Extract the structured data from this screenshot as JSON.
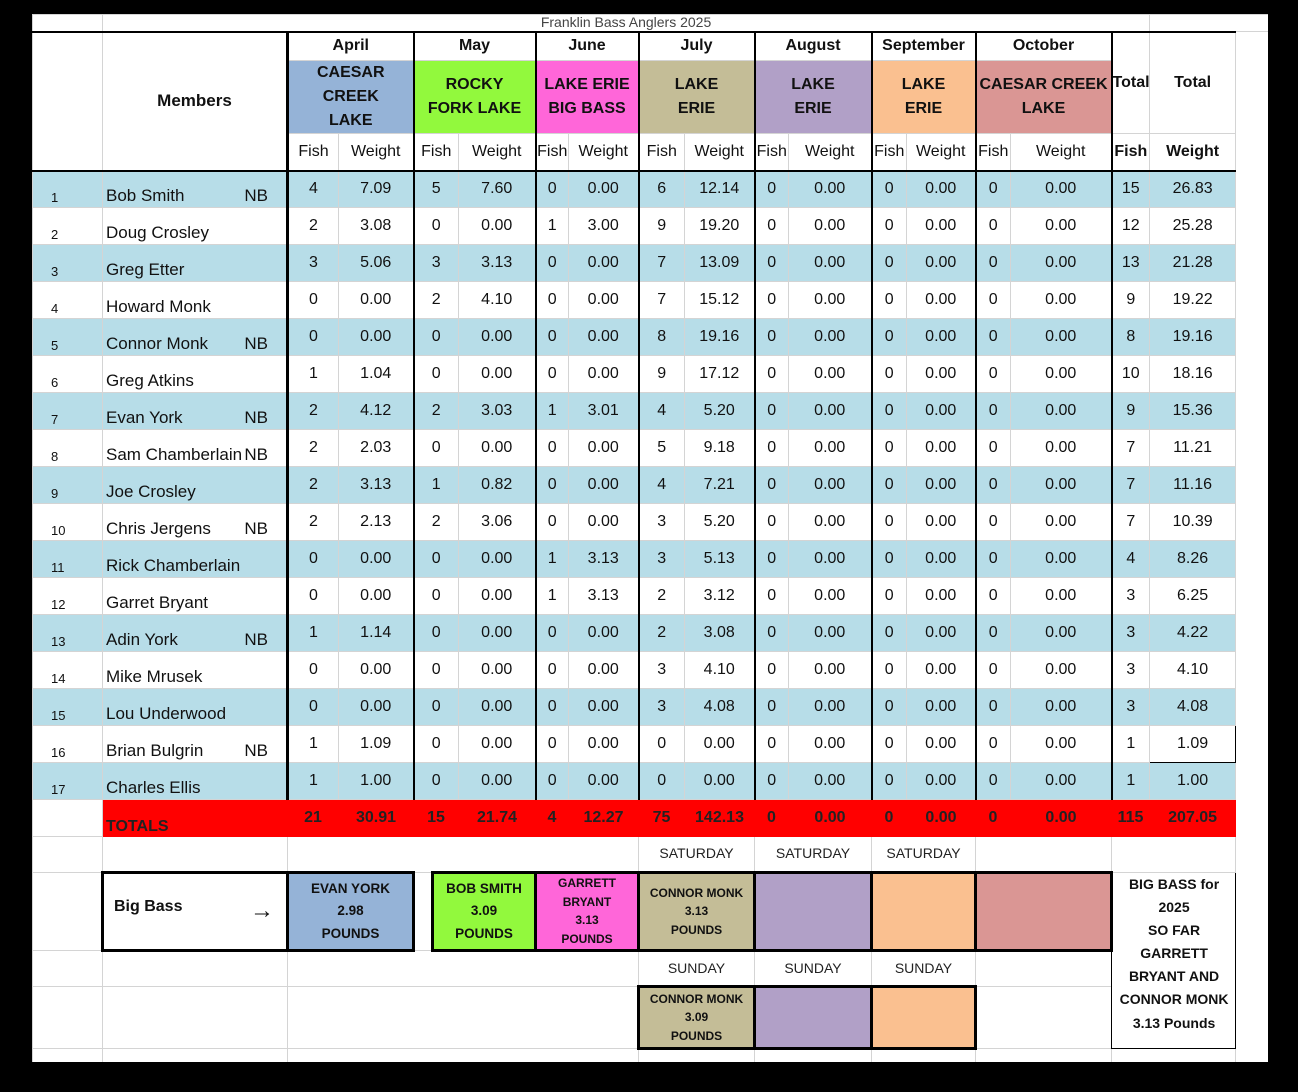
{
  "title": "Franklin Bass Anglers 2025",
  "headers": {
    "members": "Members",
    "total_fish_top": "Total",
    "total_fish_bottom": "Fish",
    "total_weight_top": "Total",
    "total_weight_bottom": "Weight",
    "fish": "Fish",
    "weight": "Weight"
  },
  "months": [
    {
      "month": "April",
      "lake_line1": "CAESAR CREEK",
      "lake_line2": "LAKE",
      "color": "#95b3d7"
    },
    {
      "month": "May",
      "lake_line1": "ROCKY",
      "lake_line2": "FORK LAKE",
      "color": "#92f93d"
    },
    {
      "month": "June",
      "lake_line1": "LAKE ERIE",
      "lake_line2": "BIG BASS",
      "color": "#ff66d9"
    },
    {
      "month": "July",
      "lake_line1": "LAKE",
      "lake_line2": "ERIE",
      "color": "#c4bd97"
    },
    {
      "month": "August",
      "lake_line1": "LAKE",
      "lake_line2": "ERIE",
      "color": "#b1a0c7"
    },
    {
      "month": "September",
      "lake_line1": "LAKE",
      "lake_line2": "ERIE",
      "color": "#fac090"
    },
    {
      "month": "October",
      "lake_line1": "CAESAR CREEK",
      "lake_line2": "LAKE",
      "color": "#da9694"
    }
  ],
  "members": [
    {
      "num": "1",
      "name": "Bob Smith",
      "nb": "NB",
      "results": [
        [
          "4",
          "7.09"
        ],
        [
          "5",
          "7.60"
        ],
        [
          "0",
          "0.00"
        ],
        [
          "6",
          "12.14"
        ],
        [
          "0",
          "0.00"
        ],
        [
          "0",
          "0.00"
        ],
        [
          "0",
          "0.00"
        ]
      ],
      "total_fish": "15",
      "total_weight": "26.83"
    },
    {
      "num": "2",
      "name": "Doug Crosley",
      "nb": "",
      "results": [
        [
          "2",
          "3.08"
        ],
        [
          "0",
          "0.00"
        ],
        [
          "1",
          "3.00"
        ],
        [
          "9",
          "19.20"
        ],
        [
          "0",
          "0.00"
        ],
        [
          "0",
          "0.00"
        ],
        [
          "0",
          "0.00"
        ]
      ],
      "total_fish": "12",
      "total_weight": "25.28"
    },
    {
      "num": "3",
      "name": "Greg Etter",
      "nb": "",
      "results": [
        [
          "3",
          "5.06"
        ],
        [
          "3",
          "3.13"
        ],
        [
          "0",
          "0.00"
        ],
        [
          "7",
          "13.09"
        ],
        [
          "0",
          "0.00"
        ],
        [
          "0",
          "0.00"
        ],
        [
          "0",
          "0.00"
        ]
      ],
      "total_fish": "13",
      "total_weight": "21.28"
    },
    {
      "num": "4",
      "name": "Howard Monk",
      "nb": "",
      "results": [
        [
          "0",
          "0.00"
        ],
        [
          "2",
          "4.10"
        ],
        [
          "0",
          "0.00"
        ],
        [
          "7",
          "15.12"
        ],
        [
          "0",
          "0.00"
        ],
        [
          "0",
          "0.00"
        ],
        [
          "0",
          "0.00"
        ]
      ],
      "total_fish": "9",
      "total_weight": "19.22"
    },
    {
      "num": "5",
      "name": "Connor Monk",
      "nb": "NB",
      "results": [
        [
          "0",
          "0.00"
        ],
        [
          "0",
          "0.00"
        ],
        [
          "0",
          "0.00"
        ],
        [
          "8",
          "19.16"
        ],
        [
          "0",
          "0.00"
        ],
        [
          "0",
          "0.00"
        ],
        [
          "0",
          "0.00"
        ]
      ],
      "total_fish": "8",
      "total_weight": "19.16"
    },
    {
      "num": "6",
      "name": "Greg Atkins",
      "nb": "",
      "results": [
        [
          "1",
          "1.04"
        ],
        [
          "0",
          "0.00"
        ],
        [
          "0",
          "0.00"
        ],
        [
          "9",
          "17.12"
        ],
        [
          "0",
          "0.00"
        ],
        [
          "0",
          "0.00"
        ],
        [
          "0",
          "0.00"
        ]
      ],
      "total_fish": "10",
      "total_weight": "18.16"
    },
    {
      "num": "7",
      "name": "Evan York",
      "nb": "NB",
      "results": [
        [
          "2",
          "4.12"
        ],
        [
          "2",
          "3.03"
        ],
        [
          "1",
          "3.01"
        ],
        [
          "4",
          "5.20"
        ],
        [
          "0",
          "0.00"
        ],
        [
          "0",
          "0.00"
        ],
        [
          "0",
          "0.00"
        ]
      ],
      "total_fish": "9",
      "total_weight": "15.36"
    },
    {
      "num": "8",
      "name": "Sam Chamberlain",
      "nb": "NB",
      "results": [
        [
          "2",
          "2.03"
        ],
        [
          "0",
          "0.00"
        ],
        [
          "0",
          "0.00"
        ],
        [
          "5",
          "9.18"
        ],
        [
          "0",
          "0.00"
        ],
        [
          "0",
          "0.00"
        ],
        [
          "0",
          "0.00"
        ]
      ],
      "total_fish": "7",
      "total_weight": "11.21"
    },
    {
      "num": "9",
      "name": "Joe Crosley",
      "nb": "",
      "results": [
        [
          "2",
          "3.13"
        ],
        [
          "1",
          "0.82"
        ],
        [
          "0",
          "0.00"
        ],
        [
          "4",
          "7.21"
        ],
        [
          "0",
          "0.00"
        ],
        [
          "0",
          "0.00"
        ],
        [
          "0",
          "0.00"
        ]
      ],
      "total_fish": "7",
      "total_weight": "11.16"
    },
    {
      "num": "10",
      "name": "Chris Jergens",
      "nb": "NB",
      "results": [
        [
          "2",
          "2.13"
        ],
        [
          "2",
          "3.06"
        ],
        [
          "0",
          "0.00"
        ],
        [
          "3",
          "5.20"
        ],
        [
          "0",
          "0.00"
        ],
        [
          "0",
          "0.00"
        ],
        [
          "0",
          "0.00"
        ]
      ],
      "total_fish": "7",
      "total_weight": "10.39"
    },
    {
      "num": "11",
      "name": "Rick Chamberlain",
      "nb": "",
      "results": [
        [
          "0",
          "0.00"
        ],
        [
          "0",
          "0.00"
        ],
        [
          "1",
          "3.13"
        ],
        [
          "3",
          "5.13"
        ],
        [
          "0",
          "0.00"
        ],
        [
          "0",
          "0.00"
        ],
        [
          "0",
          "0.00"
        ]
      ],
      "total_fish": "4",
      "total_weight": "8.26"
    },
    {
      "num": "12",
      "name": "Garret Bryant",
      "nb": "",
      "results": [
        [
          "0",
          "0.00"
        ],
        [
          "0",
          "0.00"
        ],
        [
          "1",
          "3.13"
        ],
        [
          "2",
          "3.12"
        ],
        [
          "0",
          "0.00"
        ],
        [
          "0",
          "0.00"
        ],
        [
          "0",
          "0.00"
        ]
      ],
      "total_fish": "3",
      "total_weight": "6.25"
    },
    {
      "num": "13",
      "name": "Adin York",
      "nb": "NB",
      "results": [
        [
          "1",
          "1.14"
        ],
        [
          "0",
          "0.00"
        ],
        [
          "0",
          "0.00"
        ],
        [
          "2",
          "3.08"
        ],
        [
          "0",
          "0.00"
        ],
        [
          "0",
          "0.00"
        ],
        [
          "0",
          "0.00"
        ]
      ],
      "total_fish": "3",
      "total_weight": "4.22"
    },
    {
      "num": "14",
      "name": "Mike Mrusek",
      "nb": "",
      "results": [
        [
          "0",
          "0.00"
        ],
        [
          "0",
          "0.00"
        ],
        [
          "0",
          "0.00"
        ],
        [
          "3",
          "4.10"
        ],
        [
          "0",
          "0.00"
        ],
        [
          "0",
          "0.00"
        ],
        [
          "0",
          "0.00"
        ]
      ],
      "total_fish": "3",
      "total_weight": "4.10"
    },
    {
      "num": "15",
      "name": "Lou Underwood",
      "nb": "",
      "results": [
        [
          "0",
          "0.00"
        ],
        [
          "0",
          "0.00"
        ],
        [
          "0",
          "0.00"
        ],
        [
          "3",
          "4.08"
        ],
        [
          "0",
          "0.00"
        ],
        [
          "0",
          "0.00"
        ],
        [
          "0",
          "0.00"
        ]
      ],
      "total_fish": "3",
      "total_weight": "4.08"
    },
    {
      "num": "16",
      "name": "Brian Bulgrin",
      "nb": "NB",
      "results": [
        [
          "1",
          "1.09"
        ],
        [
          "0",
          "0.00"
        ],
        [
          "0",
          "0.00"
        ],
        [
          "0",
          "0.00"
        ],
        [
          "0",
          "0.00"
        ],
        [
          "0",
          "0.00"
        ],
        [
          "0",
          "0.00"
        ]
      ],
      "total_fish": "1",
      "total_weight": "1.09"
    },
    {
      "num": "17",
      "name": "Charles Ellis",
      "nb": "",
      "results": [
        [
          "1",
          "1.00"
        ],
        [
          "0",
          "0.00"
        ],
        [
          "0",
          "0.00"
        ],
        [
          "0",
          "0.00"
        ],
        [
          "0",
          "0.00"
        ],
        [
          "0",
          "0.00"
        ],
        [
          "0",
          "0.00"
        ]
      ],
      "total_fish": "1",
      "total_weight": "1.00"
    }
  ],
  "totals": {
    "label": "TOTALS",
    "results": [
      [
        "21",
        "30.91"
      ],
      [
        "15",
        "21.74"
      ],
      [
        "4",
        "12.27"
      ],
      [
        "75",
        "142.13"
      ],
      [
        "0",
        "0.00"
      ],
      [
        "0",
        "0.00"
      ],
      [
        "0",
        "0.00"
      ]
    ],
    "total_fish": "115",
    "total_weight": "207.05"
  },
  "days": {
    "saturday": [
      "SATURDAY",
      "SATURDAY",
      "SATURDAY"
    ],
    "sunday": [
      "SUNDAY",
      "SUNDAY",
      "SUNDAY"
    ]
  },
  "big_bass": {
    "label": "Big Bass",
    "arrow": "→",
    "april": [
      "EVAN YORK",
      "2.98",
      "POUNDS"
    ],
    "may": [
      "BOB SMITH",
      "3.09",
      "POUNDS"
    ],
    "june": [
      "GARRETT",
      "BRYANT",
      "3.13",
      "POUNDS"
    ],
    "july_sat": [
      "CONNOR MONK",
      "3.13",
      "POUNDS"
    ],
    "july_sun": [
      "CONNOR MONK",
      "3.09",
      "POUNDS"
    ],
    "summary": [
      "BIG BASS for 2025",
      "SO FAR",
      "GARRETT BRYANT AND",
      "CONNOR MONK",
      "3.13 Pounds"
    ]
  }
}
